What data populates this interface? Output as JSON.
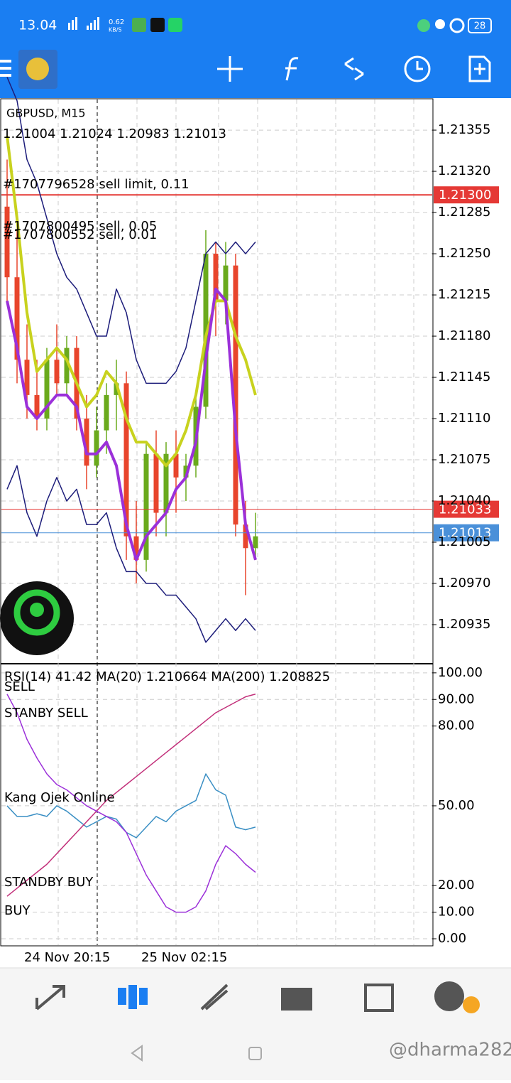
{
  "status_bar": {
    "time": "13.04",
    "net_speed": "0.62",
    "net_unit": "KB/S",
    "battery": "28"
  },
  "watermark": "@dharma282",
  "chart_data": [
    {
      "type": "candlestick",
      "title": "GBPUSD, M15",
      "subtitle": "1.21004 1.21024 1.20983 1.21013",
      "orders": [
        {
          "label": "#1707796528 sell limit, 0.11"
        },
        {
          "label": "#1707800552 sell, 0.01"
        },
        {
          "label": "#1707800495 sell, 0.05"
        }
      ],
      "price_lines": [
        {
          "value": 1.213,
          "label": "1.21300",
          "color": "#e53935"
        },
        {
          "value": 1.21033,
          "color": "#e53935"
        },
        {
          "value": 1.21013,
          "color": "#4a90d9"
        }
      ],
      "xtick_labels": [
        "24 Nov 20:15",
        "25 Nov 02:15"
      ],
      "ylim": [
        1.20903,
        1.21381
      ],
      "yticks": [
        1.21355,
        {
          "value": 1.2132,
          "label": "1.21320"
        },
        1.21285,
        {
          "value": 1.2125,
          "label": "1.21250"
        },
        1.21215,
        {
          "value": 1.2118,
          "label": "1.21180"
        },
        1.21145,
        {
          "value": 1.2111,
          "label": "1.21110"
        },
        1.21075,
        {
          "value": 1.2104,
          "label": "1.21040"
        },
        1.21005,
        {
          "value": 1.2097,
          "label": "1.20970"
        },
        1.20935
      ],
      "grid": true,
      "up_color": "#6aaa1c",
      "down_color": "#e8452c",
      "open": [
        1.2129,
        1.2123,
        1.2116,
        1.2113,
        1.2111,
        1.2116,
        1.2114,
        1.2117,
        1.2111,
        1.2107,
        1.211,
        1.2113,
        1.2114,
        1.2101,
        1.2099,
        1.2108,
        1.2103,
        1.2108,
        1.2106,
        1.2107,
        1.2112,
        1.2125,
        1.2121,
        1.2124,
        1.2102,
        1.21
      ],
      "high": [
        1.2133,
        1.2127,
        1.2119,
        1.2116,
        1.2117,
        1.2119,
        1.2118,
        1.2118,
        1.2113,
        1.2112,
        1.2114,
        1.2116,
        1.2115,
        1.2104,
        1.2109,
        1.211,
        1.2109,
        1.211,
        1.2108,
        1.2113,
        1.2127,
        1.2126,
        1.2126,
        1.2125,
        1.2104,
        1.2103
      ],
      "low": [
        1.2121,
        1.2114,
        1.2111,
        1.211,
        1.211,
        1.2113,
        1.2113,
        1.211,
        1.2105,
        1.2106,
        1.2108,
        1.211,
        1.2099,
        1.2097,
        1.2098,
        1.2101,
        1.2101,
        1.2103,
        1.2104,
        1.2106,
        1.2111,
        1.2118,
        1.2119,
        1.2101,
        1.2096,
        1.2099
      ],
      "close": [
        1.2123,
        1.2116,
        1.2113,
        1.2111,
        1.2116,
        1.2114,
        1.2117,
        1.2111,
        1.2107,
        1.211,
        1.2113,
        1.2114,
        1.2101,
        1.2099,
        1.2108,
        1.2103,
        1.2108,
        1.2106,
        1.2107,
        1.2112,
        1.2125,
        1.2121,
        1.2124,
        1.2102,
        1.21,
        1.2101
      ],
      "series": [
        {
          "color": "#1c1c7a",
          "values": [
            1.214,
            1.2138,
            1.2133,
            1.2131,
            1.2128,
            1.2125,
            1.2123,
            1.2122,
            1.212,
            1.2118,
            1.2118,
            1.2122,
            1.212,
            1.2116,
            1.2114,
            1.2114,
            1.2114,
            1.2115,
            1.2117,
            1.2121,
            1.2125,
            1.2126,
            1.2125,
            1.2126,
            1.2125,
            1.2126
          ]
        },
        {
          "color": "#1c1c7a",
          "values": [
            1.2105,
            1.2107,
            1.2103,
            1.2101,
            1.2104,
            1.2106,
            1.2104,
            1.2105,
            1.2102,
            1.2102,
            1.2103,
            1.21,
            1.2098,
            1.2098,
            1.2097,
            1.2097,
            1.2096,
            1.2096,
            1.2095,
            1.2094,
            1.2092,
            1.2093,
            1.2094,
            1.2093,
            1.2094,
            1.2093
          ]
        },
        {
          "color": "#c8d21e",
          "values": [
            1.2135,
            1.2128,
            1.212,
            1.2115,
            1.2116,
            1.2117,
            1.2116,
            1.2114,
            1.2112,
            1.2113,
            1.2115,
            1.2114,
            1.2111,
            1.2109,
            1.2109,
            1.2108,
            1.2107,
            1.2108,
            1.211,
            1.2113,
            1.2118,
            1.2121,
            1.2121,
            1.2118,
            1.2116,
            1.2113
          ]
        },
        {
          "color": "#9b30d9",
          "values": [
            1.2121,
            1.2117,
            1.2112,
            1.2111,
            1.2112,
            1.2113,
            1.2113,
            1.2112,
            1.2108,
            1.2108,
            1.2109,
            1.2107,
            1.2102,
            1.2099,
            1.2101,
            1.2102,
            1.2103,
            1.2105,
            1.2106,
            1.2109,
            1.2116,
            1.2122,
            1.2121,
            1.211,
            1.2102,
            1.2099
          ]
        }
      ]
    },
    {
      "type": "line",
      "title": "RSI(14) 41.42 MA(20) 1.210664 MA(200) 1.208825",
      "level_labels": [
        "SELL",
        "STANBY SELL",
        "Kang Ojek Online",
        "STANDBY BUY",
        "BUY"
      ],
      "ylim": [
        -2.4,
        102.9
      ],
      "yticks": [
        {
          "value": 100,
          "label": "100.00"
        },
        {
          "value": 90,
          "label": "90.00"
        },
        {
          "value": 80,
          "label": "80.00"
        },
        {
          "value": 50,
          "label": "50.00"
        },
        {
          "value": 20,
          "label": "20.00"
        },
        {
          "value": 10,
          "label": "10.00"
        },
        {
          "value": 0,
          "label": "0.00"
        }
      ],
      "grid": true,
      "series": [
        {
          "color": "#3a8fc4",
          "values": [
            50,
            46,
            46,
            47,
            46,
            50,
            48,
            45,
            42,
            44,
            46,
            45,
            40,
            38,
            42,
            46,
            44,
            48,
            50,
            52,
            62,
            56,
            54,
            42,
            41,
            42
          ]
        },
        {
          "color": "#c2307a",
          "values": [
            16,
            19,
            22,
            25,
            28,
            32,
            36,
            40,
            44,
            48,
            52,
            55,
            58,
            61,
            64,
            67,
            70,
            73,
            76,
            79,
            82,
            85,
            87,
            89,
            91,
            92
          ]
        },
        {
          "color": "#9b30d9",
          "values": [
            92,
            85,
            75,
            68,
            62,
            58,
            56,
            53,
            50,
            48,
            46,
            44,
            40,
            32,
            24,
            18,
            12,
            10,
            10,
            12,
            18,
            28,
            35,
            32,
            28,
            25
          ]
        }
      ]
    }
  ]
}
